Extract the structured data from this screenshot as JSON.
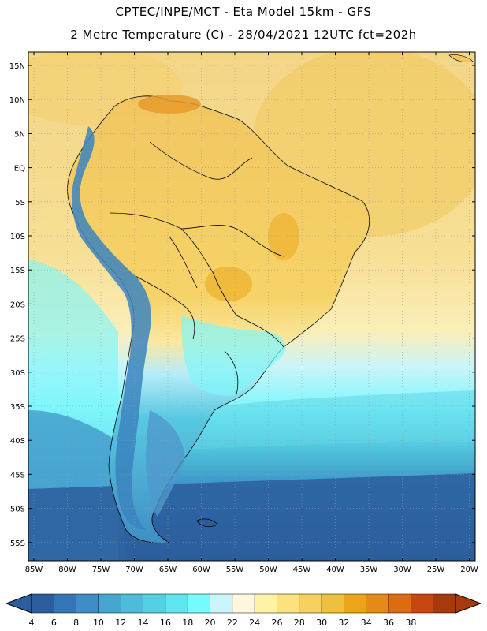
{
  "header": {
    "line1": "CPTEC/INPE/MCT -  Eta Model 15km - GFS",
    "line2": "2 Metre Temperature (C) - 28/04/2021 12UTC fct=202h"
  },
  "axes": {
    "lat_labels": [
      "15N",
      "10N",
      "5N",
      "EQ",
      "5S",
      "10S",
      "15S",
      "20S",
      "25S",
      "30S",
      "35S",
      "40S",
      "45S",
      "50S",
      "55S"
    ],
    "lon_labels": [
      "85W",
      "80W",
      "75W",
      "70W",
      "65W",
      "60W",
      "55W",
      "50W",
      "45W",
      "40W",
      "35W",
      "30W",
      "25W",
      "20W"
    ]
  },
  "colorbar": {
    "labels": [
      "4",
      "6",
      "8",
      "10",
      "12",
      "14",
      "16",
      "18",
      "20",
      "22",
      "24",
      "26",
      "28",
      "30",
      "32",
      "34",
      "36",
      "38"
    ],
    "colors": [
      "#2c5e9e",
      "#3476b5",
      "#3f8dc4",
      "#46a6d0",
      "#4cbcd9",
      "#52d1e3",
      "#5de6ee",
      "#74fbfd",
      "#c9f5fb",
      "#fdf7e0",
      "#fdf2a5",
      "#fbe27a",
      "#f6d25d",
      "#efc03f",
      "#eba518",
      "#e58a16",
      "#dd6b10",
      "#c84710",
      "#a8390c"
    ],
    "left_arrow_color": "#2c5e9e",
    "right_arrow_color": "#a8390c"
  },
  "map_colors": {
    "ocean_warm": "#f3d586",
    "ocean_mild": "#fbeeb8",
    "ocean_cool": "#7ef6fb",
    "ocean_cold": "#3b8fc5",
    "ocean_coldest": "#2c5e9e",
    "land_hot": "#f1c661",
    "land_tropical": "#f6d368",
    "andes": "#3b84c0",
    "patagonia": "#4f99cc"
  }
}
